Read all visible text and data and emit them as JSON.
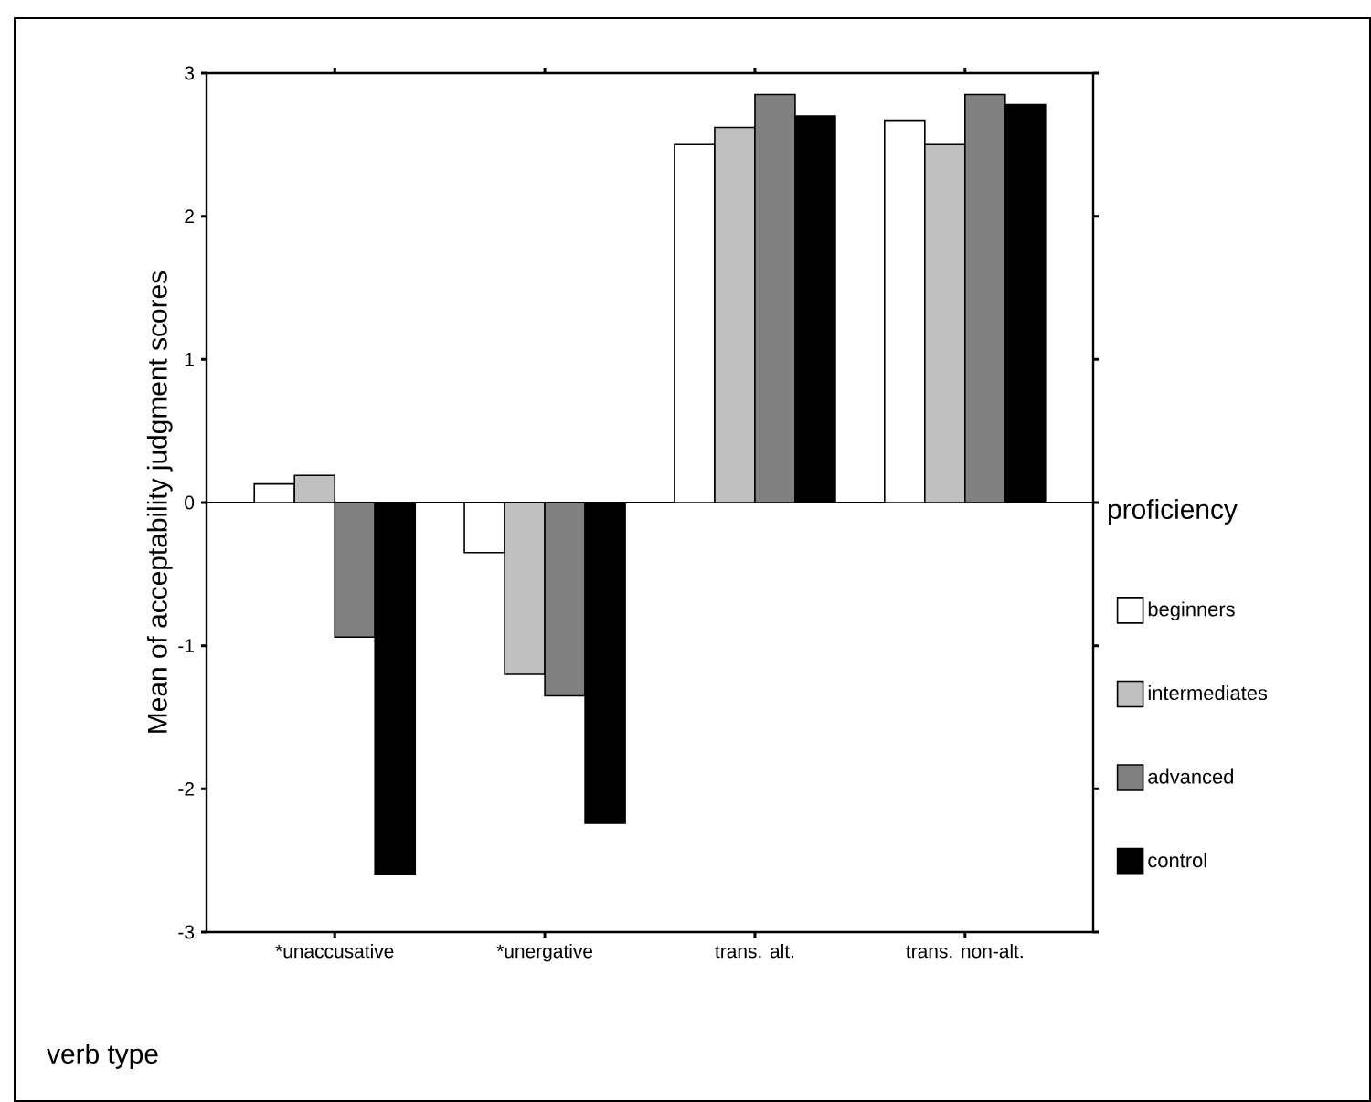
{
  "chart_data": {
    "type": "bar",
    "xlabel": "verb type",
    "ylabel": "Mean of acceptability judgment scores",
    "legend_title": "proficiency",
    "categories": [
      "*unaccusative",
      "*unergative",
      "trans. alt.",
      "trans. non-alt."
    ],
    "series": [
      {
        "name": "beginners",
        "color": "#ffffff",
        "values": [
          0.13,
          -0.35,
          2.5,
          2.67
        ]
      },
      {
        "name": "intermediates",
        "color": "#c0c0c0",
        "values": [
          0.19,
          -1.2,
          2.62,
          2.5
        ]
      },
      {
        "name": "advanced",
        "color": "#808080",
        "values": [
          -0.94,
          -1.35,
          2.85,
          2.85
        ]
      },
      {
        "name": "control",
        "color": "#000000",
        "values": [
          -2.6,
          -2.24,
          2.7,
          2.78
        ]
      }
    ],
    "ref_lines": [
      {
        "axis": "y",
        "value": 0
      }
    ],
    "ylim": [
      -3,
      3
    ],
    "yticks": [
      -3,
      -2,
      -1,
      0,
      1,
      2,
      3
    ],
    "legend": "right",
    "grid": false
  }
}
